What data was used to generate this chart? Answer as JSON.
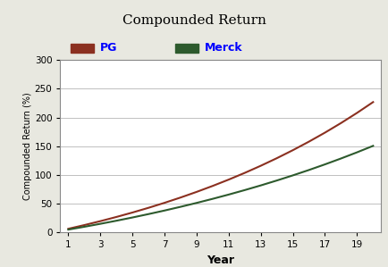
{
  "title": "Compounded Return",
  "title_bg_color": "#f5f0c8",
  "xlabel": "Year",
  "ylabel": "Compounded Return (%)",
  "years": [
    1,
    2,
    3,
    4,
    5,
    6,
    7,
    8,
    9,
    10,
    11,
    12,
    13,
    14,
    15,
    16,
    17,
    18,
    19,
    20
  ],
  "pg_growth_rate": 0.061,
  "merck_growth_rate": 0.047,
  "pg_label": "PG",
  "merck_label": "Merck",
  "pg_color": "#8b3020",
  "merck_color": "#2d5a2d",
  "ylim": [
    0,
    300
  ],
  "xlim": [
    0.5,
    20.5
  ],
  "xticks": [
    1,
    3,
    5,
    7,
    9,
    11,
    13,
    15,
    17,
    19
  ],
  "yticks": [
    0,
    50,
    100,
    150,
    200,
    250,
    300
  ],
  "bg_color": "#ffffff",
  "outer_bg_color": "#e8e8e0",
  "grid_color": "#c0c0c0",
  "pg_linewidth": 1.5,
  "merck_linewidth": 1.5,
  "title_fontsize": 11,
  "legend_fontsize": 9,
  "axis_label_fontsize": 9,
  "tick_fontsize": 7.5
}
